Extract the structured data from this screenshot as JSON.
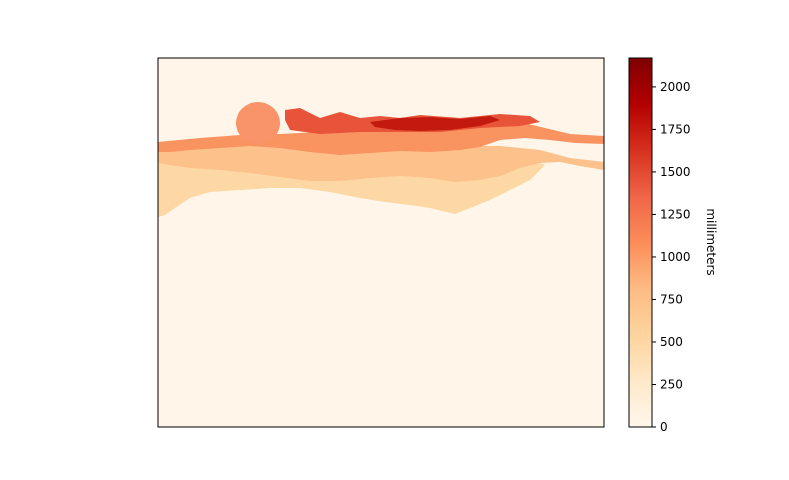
{
  "chart_data": {
    "type": "heatmap",
    "title": "",
    "xlabel": "",
    "ylabel": "",
    "colormap": "OrRd",
    "colorbar": {
      "label": "millimeters",
      "min": 0,
      "max": 2170,
      "ticks": [
        0,
        250,
        500,
        750,
        1000,
        1250,
        1500,
        1750,
        2000
      ],
      "tick_labels": [
        "0",
        "250",
        "500",
        "750",
        "1000",
        "1250",
        "1500",
        "1750",
        "2000"
      ]
    },
    "axes_ticks_visible": false,
    "grid": false,
    "regions": [
      {
        "name": "background",
        "value": 40
      },
      {
        "name": "near band",
        "value": 500
      },
      {
        "name": "mid band",
        "value": 720
      },
      {
        "name": "far band",
        "value": 1050
      },
      {
        "name": "farthest strip",
        "value": 1400
      },
      {
        "name": "peak strip",
        "value": 1750
      },
      {
        "name": "circular object",
        "value": 1050
      }
    ]
  }
}
